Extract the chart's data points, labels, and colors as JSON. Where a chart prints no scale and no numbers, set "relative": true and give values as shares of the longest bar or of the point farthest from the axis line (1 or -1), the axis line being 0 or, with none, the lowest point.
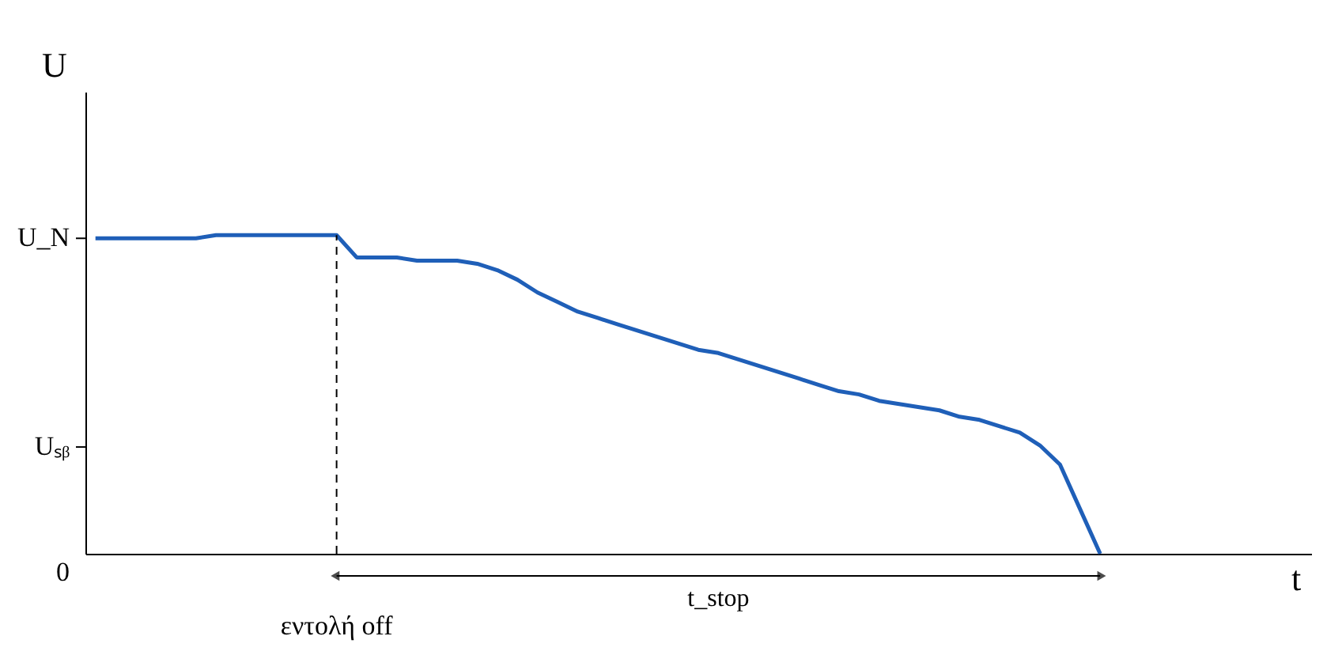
{
  "chart_data": {
    "type": "line",
    "relative": true,
    "xlabel": "t",
    "ylabel": "U",
    "categories": [
      null,
      null,
      null,
      null,
      null,
      null,
      null,
      null,
      null,
      null,
      null,
      null,
      null,
      null,
      null,
      null,
      null,
      null,
      null,
      null,
      null,
      null,
      null,
      null,
      null,
      null,
      null,
      null,
      null,
      null,
      null,
      null,
      null,
      null,
      null,
      null,
      null,
      null,
      null,
      null,
      null,
      null,
      null,
      null,
      null,
      null,
      null,
      null,
      null,
      null,
      null,
      null,
      null,
      null,
      null,
      null,
      null,
      null,
      null,
      null,
      null
    ],
    "series": [
      {
        "color": "#1f5fb8",
        "values": [
          0.99,
          0.99,
          0.99,
          0.99,
          0.99,
          0.99,
          1,
          1,
          1,
          1,
          1,
          1,
          1,
          0.93,
          0.93,
          0.93,
          0.92,
          0.92,
          0.92,
          0.91,
          0.89,
          0.86,
          0.82,
          0.79,
          0.76,
          0.74,
          0.72,
          0.7,
          0.68,
          0.66,
          0.64,
          0.63,
          0.61,
          0.59,
          0.57,
          0.55,
          0.53,
          0.51,
          0.5,
          0.48,
          0.47,
          0.46,
          0.45,
          0.43,
          0.42,
          0.4,
          0.38,
          0.34,
          0.28,
          0.14,
          0,
          null,
          null,
          null,
          null,
          null,
          null,
          null,
          null,
          null,
          null
        ]
      }
    ],
    "ref_lines": [
      {
        "axis": "y",
        "value": 0.335,
        "label": "Uₛᵦ"
      },
      {
        "axis": "y",
        "value": 0.99,
        "label": "U_N"
      }
    ],
    "annotations": [
      "0",
      "εντολή off",
      "t_stop"
    ],
    "grid": false,
    "marker": "none",
    "line_style": "solid"
  }
}
